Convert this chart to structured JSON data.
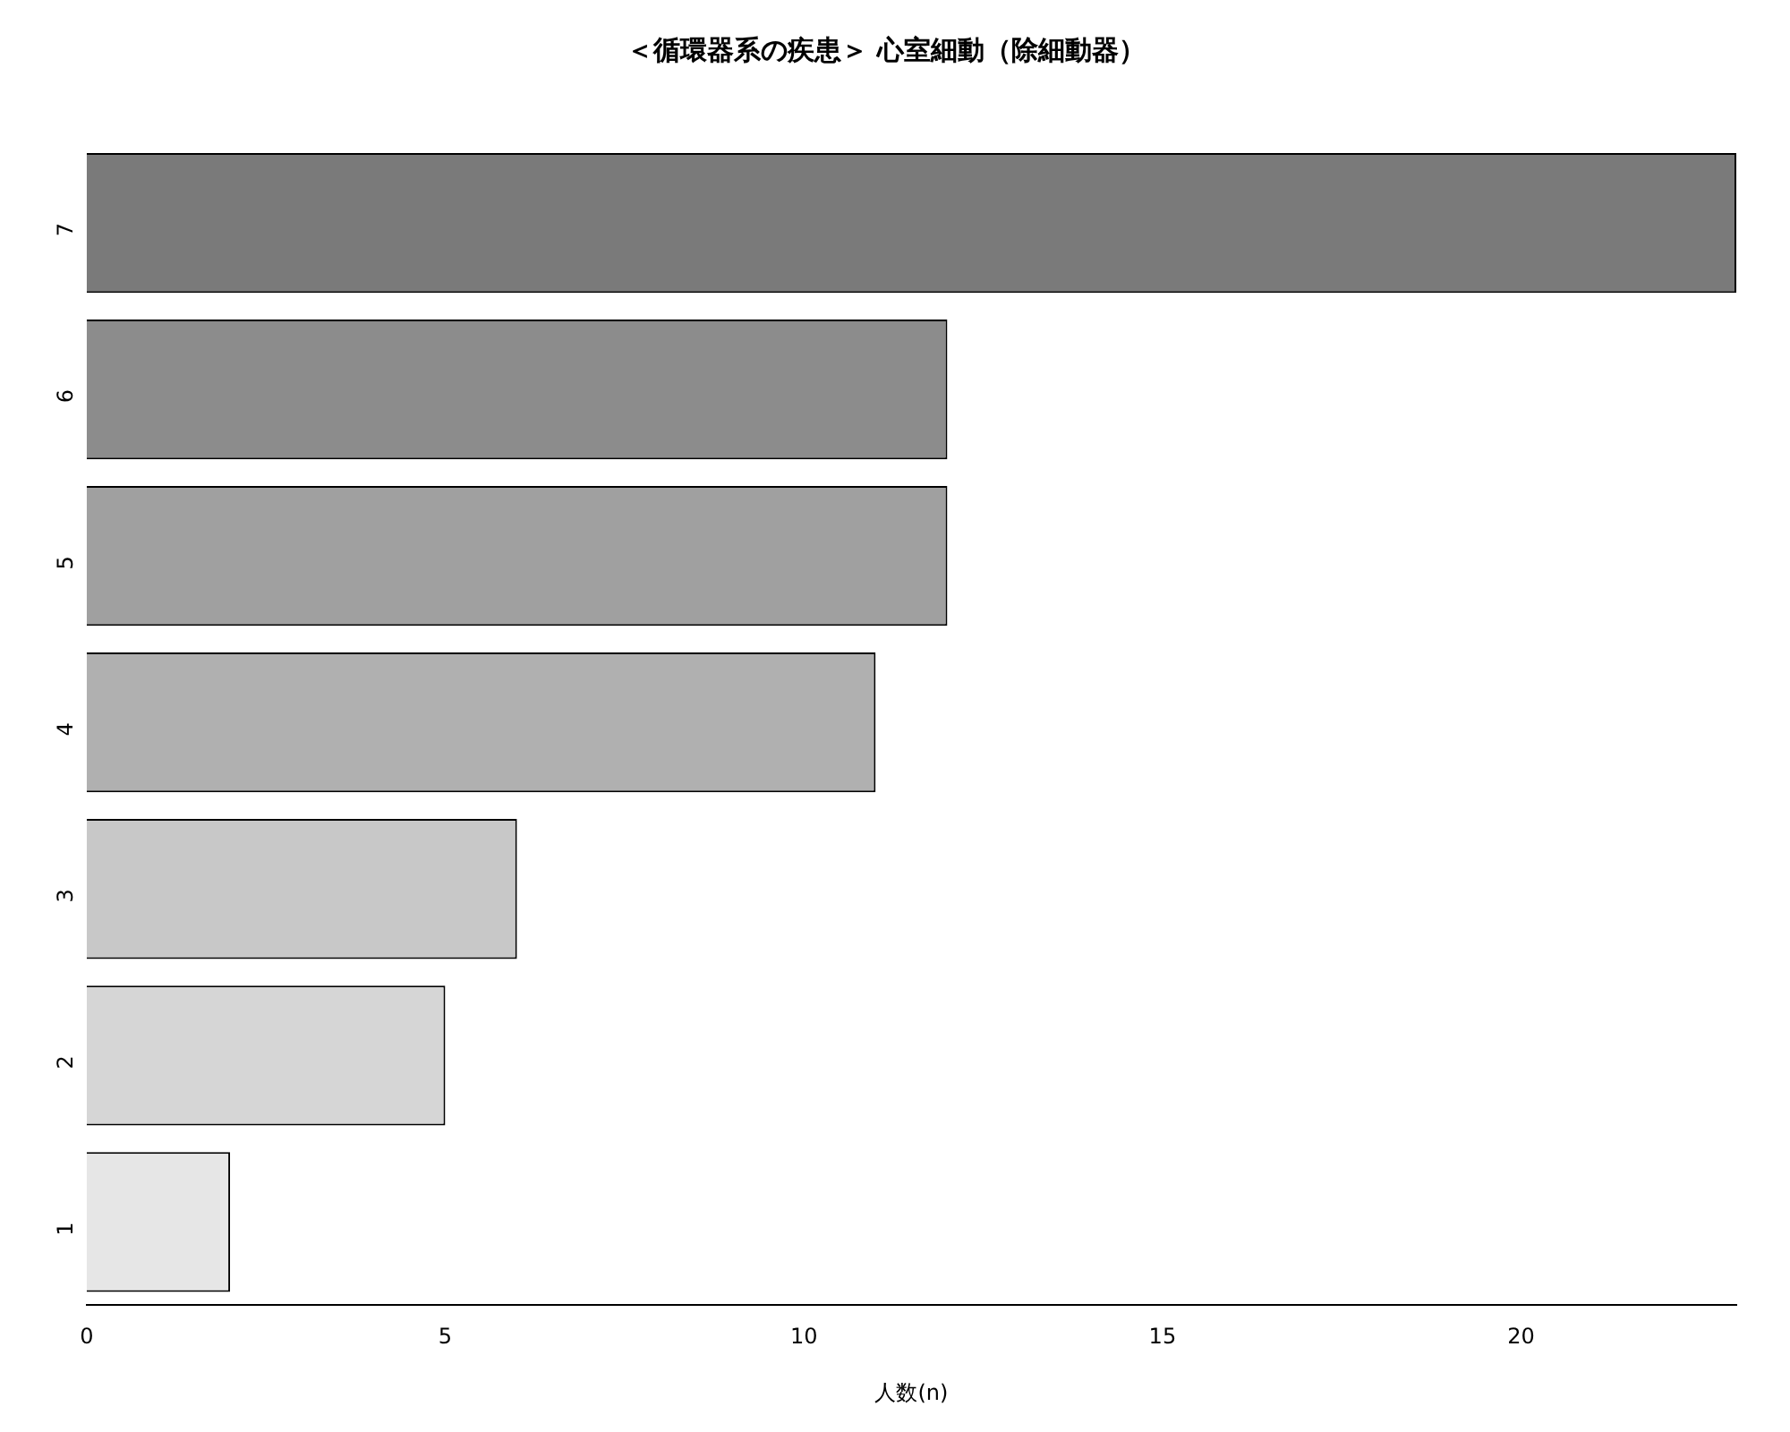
{
  "chart_data": {
    "type": "bar",
    "orientation": "horizontal",
    "title": "＜循環器系の疾患＞ 心室細動（除細動器）",
    "xlabel": "人数(n)",
    "categories": [
      "7",
      "6",
      "5",
      "4",
      "3",
      "2",
      "1"
    ],
    "values": [
      23,
      12,
      12,
      11,
      6,
      5,
      2
    ],
    "colors": [
      "#7a7a7a",
      "#8c8c8c",
      "#a0a0a0",
      "#b0b0b0",
      "#c8c8c8",
      "#d6d6d6",
      "#e6e6e6"
    ],
    "xlim": [
      0,
      23
    ],
    "xticks": [
      0,
      5,
      10,
      15,
      20
    ],
    "grid": false,
    "legend": false
  }
}
